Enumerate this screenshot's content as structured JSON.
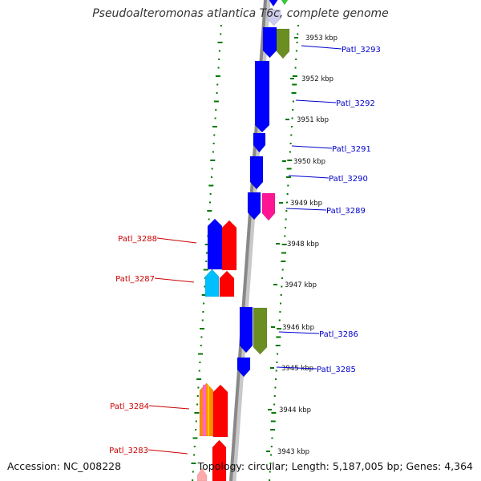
{
  "title": "Pseudoalteromonas atlantica T6c, complete genome",
  "footer": {
    "accession": "Accession: NC_008228",
    "topology": "Topology: circular; Length: 5,187,005 bp; Genes: 4,364"
  },
  "colors": {
    "forward_label": "#0000cc",
    "reverse_label": "#cc0000",
    "cds_forward": "#0000ff",
    "cds_reverse": "#ff0000",
    "backbone": "#888888",
    "gc_skew": "#007700"
  },
  "scale_ticks": [
    "3953 kbp",
    "3952 kbp",
    "3951 kbp",
    "3950 kbp",
    "3949 kbp",
    "3948 kbp",
    "3947 kbp",
    "3946 kbp",
    "3945 kbp",
    "3944 kbp",
    "3943 kbp"
  ],
  "genes_forward": [
    "Patl_3293",
    "Patl_3292",
    "Patl_3291",
    "Patl_3290",
    "Patl_3289",
    "Patl_3286",
    "Patl_3285"
  ],
  "genes_reverse": [
    "Patl_3288",
    "Patl_3287",
    "Patl_3284",
    "Patl_3283"
  ]
}
